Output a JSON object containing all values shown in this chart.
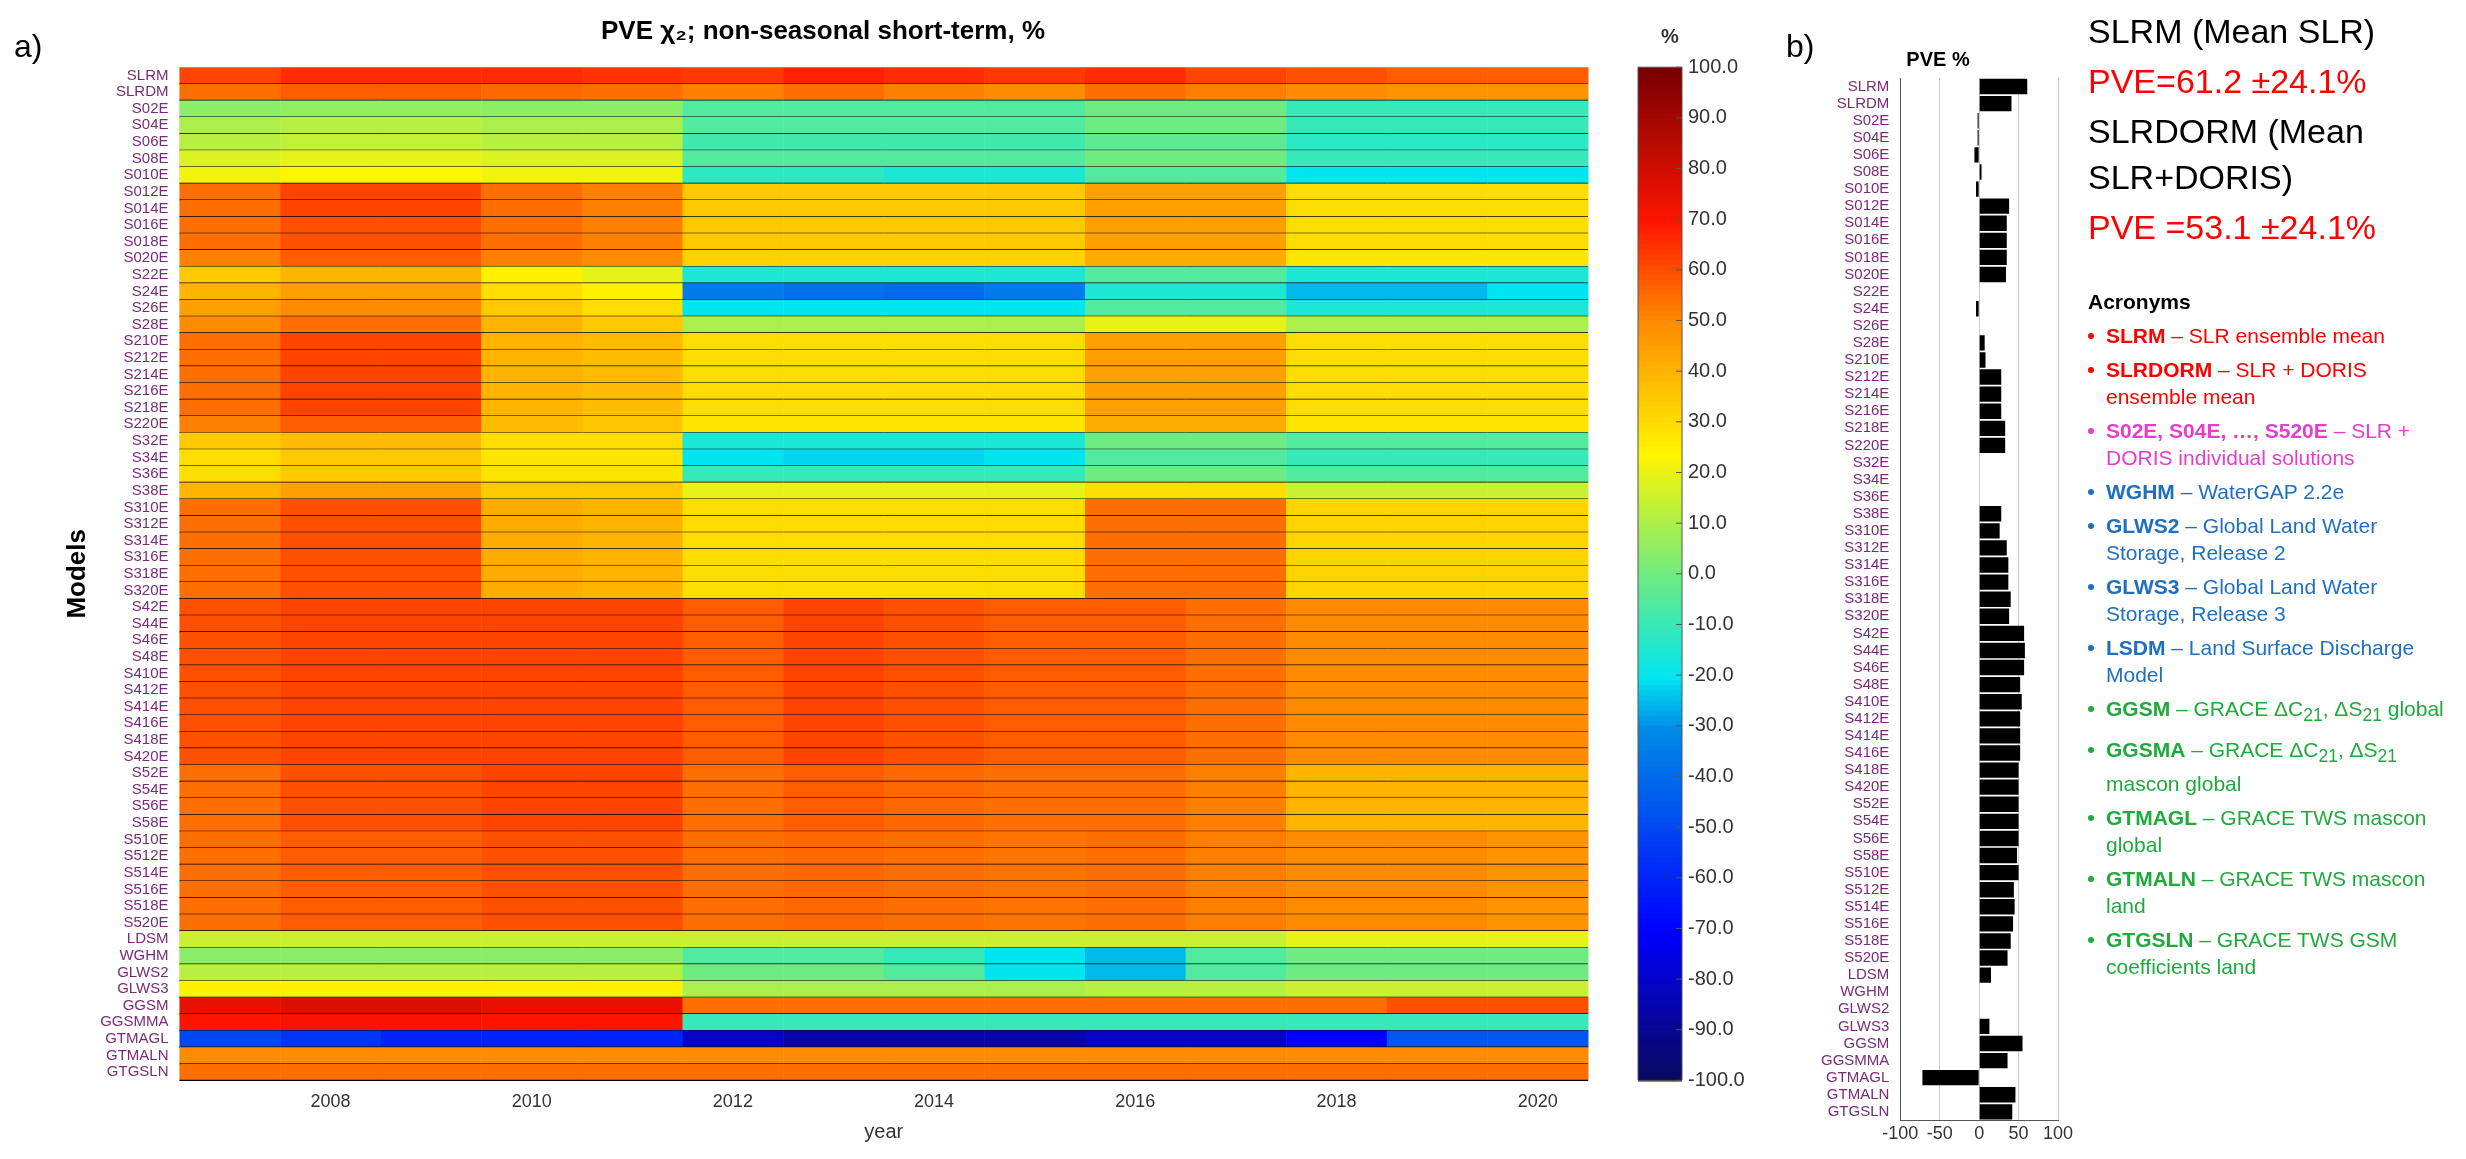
{
  "chart_data": [
    {
      "type": "heatmap",
      "title": "PVE χ₂; non-seasonal short-term, %",
      "xlabel": "year",
      "ylabel": "Models",
      "clabel": "%",
      "annotations": [
        "a)"
      ],
      "x": [
        2007,
        2008,
        2009,
        2010,
        2011,
        2012,
        2013,
        2014,
        2015,
        2016,
        2017,
        2018,
        2019,
        2020
      ],
      "xlim": [
        2006.5,
        2020.5
      ],
      "xticks": [
        2008,
        2010,
        2012,
        2014,
        2016,
        2018,
        2020
      ],
      "clim": [
        -100,
        100
      ],
      "cticks": [
        {
          "value": 100,
          "label": "100.0"
        },
        {
          "value": 90,
          "label": "90.0"
        },
        {
          "value": 80,
          "label": "80.0"
        },
        {
          "value": 70,
          "label": "70.0"
        },
        {
          "value": 60,
          "label": "60.0"
        },
        {
          "value": 50,
          "label": "50.0"
        },
        {
          "value": 40,
          "label": "40.0"
        },
        {
          "value": 30,
          "label": "30.0"
        },
        {
          "value": 20,
          "label": "20.0"
        },
        {
          "value": 10,
          "label": "10.0"
        },
        {
          "value": 0,
          "label": "0.0"
        },
        {
          "value": -10,
          "label": "-10.0"
        },
        {
          "value": -20,
          "label": "-20.0"
        },
        {
          "value": -30,
          "label": "-30.0"
        },
        {
          "value": -40,
          "label": "-40.0"
        },
        {
          "value": -50,
          "label": "-50.0"
        },
        {
          "value": -60,
          "label": "-60.0"
        },
        {
          "value": -70,
          "label": "-70.0"
        },
        {
          "value": -80,
          "label": "-80.0"
        },
        {
          "value": -90,
          "label": "-90.0"
        },
        {
          "value": -100,
          "label": "-100.0"
        }
      ],
      "y_categories": [
        "SLRM",
        "SLRDM",
        "S02E",
        "S04E",
        "S06E",
        "S08E",
        "S010E",
        "S012E",
        "S014E",
        "S016E",
        "S018E",
        "S020E",
        "S22E",
        "S24E",
        "S26E",
        "S28E",
        "S210E",
        "S212E",
        "S214E",
        "S216E",
        "S218E",
        "S220E",
        "S32E",
        "S34E",
        "S36E",
        "S38E",
        "S310E",
        "S312E",
        "S314E",
        "S316E",
        "S318E",
        "S320E",
        "S42E",
        "S44E",
        "S46E",
        "S48E",
        "S410E",
        "S412E",
        "S414E",
        "S416E",
        "S418E",
        "S420E",
        "S52E",
        "S54E",
        "S56E",
        "S58E",
        "S510E",
        "S512E",
        "S514E",
        "S516E",
        "S518E",
        "S520E",
        "LDSM",
        "WGHM",
        "GLWS2",
        "GLWS3",
        "GGSM",
        "GGSMMA",
        "GTMAGL",
        "GTMALN",
        "GTGSLN"
      ],
      "cells": [
        [
          62,
          66,
          66,
          66,
          65,
          64,
          68,
          66,
          64,
          66,
          62,
          60,
          58,
          58
        ],
        [
          55,
          58,
          58,
          56,
          55,
          52,
          55,
          52,
          50,
          55,
          52,
          50,
          48,
          48
        ],
        [
          5,
          6,
          6,
          5,
          5,
          -5,
          -5,
          -5,
          -5,
          0,
          0,
          -10,
          -10,
          -10
        ],
        [
          10,
          12,
          12,
          10,
          10,
          -5,
          -5,
          -5,
          -5,
          0,
          0,
          -10,
          -10,
          -10
        ],
        [
          12,
          14,
          14,
          12,
          12,
          -8,
          -8,
          -8,
          -8,
          -3,
          -3,
          -12,
          -12,
          -12
        ],
        [
          18,
          20,
          20,
          18,
          18,
          -5,
          -5,
          -5,
          -5,
          0,
          0,
          -10,
          -10,
          -10
        ],
        [
          22,
          24,
          24,
          22,
          22,
          -12,
          -12,
          -15,
          -15,
          -5,
          -5,
          -20,
          -20,
          -20
        ],
        [
          55,
          62,
          62,
          55,
          52,
          35,
          35,
          35,
          35,
          45,
          45,
          30,
          30,
          30
        ],
        [
          55,
          62,
          62,
          55,
          52,
          35,
          35,
          35,
          35,
          45,
          45,
          30,
          30,
          30
        ],
        [
          55,
          60,
          60,
          55,
          52,
          35,
          35,
          35,
          35,
          45,
          45,
          30,
          30,
          30
        ],
        [
          55,
          60,
          60,
          55,
          52,
          35,
          35,
          35,
          35,
          45,
          45,
          30,
          30,
          30
        ],
        [
          52,
          58,
          58,
          52,
          50,
          33,
          33,
          33,
          33,
          42,
          42,
          28,
          28,
          28
        ],
        [
          35,
          40,
          40,
          25,
          20,
          -15,
          -15,
          -15,
          -15,
          -5,
          -5,
          -15,
          -15,
          -15
        ],
        [
          40,
          45,
          45,
          30,
          25,
          -35,
          -38,
          -40,
          -35,
          -15,
          -15,
          -25,
          -25,
          -20
        ],
        [
          45,
          50,
          50,
          35,
          30,
          -20,
          -20,
          -20,
          -20,
          -5,
          -5,
          -15,
          -15,
          -15
        ],
        [
          50,
          55,
          55,
          40,
          35,
          10,
          10,
          10,
          10,
          20,
          20,
          10,
          10,
          10
        ],
        [
          55,
          62,
          62,
          40,
          38,
          30,
          30,
          30,
          30,
          45,
          45,
          30,
          30,
          30
        ],
        [
          55,
          62,
          62,
          40,
          38,
          30,
          30,
          30,
          30,
          45,
          45,
          30,
          30,
          30
        ],
        [
          55,
          62,
          62,
          40,
          38,
          30,
          30,
          30,
          30,
          45,
          45,
          30,
          30,
          30
        ],
        [
          55,
          62,
          62,
          40,
          38,
          30,
          30,
          30,
          30,
          45,
          45,
          30,
          30,
          30
        ],
        [
          55,
          62,
          62,
          40,
          38,
          30,
          30,
          30,
          30,
          45,
          45,
          30,
          30,
          30
        ],
        [
          52,
          58,
          58,
          38,
          36,
          28,
          28,
          28,
          28,
          42,
          42,
          28,
          28,
          28
        ],
        [
          35,
          38,
          38,
          30,
          30,
          -15,
          -15,
          -15,
          -15,
          0,
          0,
          -5,
          -5,
          -5
        ],
        [
          30,
          35,
          35,
          28,
          28,
          -20,
          -22,
          -22,
          -20,
          -5,
          -5,
          -10,
          -10,
          -10
        ],
        [
          30,
          35,
          35,
          28,
          28,
          -10,
          -10,
          -10,
          -10,
          0,
          0,
          -5,
          -5,
          -5
        ],
        [
          40,
          45,
          45,
          35,
          35,
          20,
          20,
          20,
          20,
          30,
          30,
          15,
          15,
          15
        ],
        [
          55,
          60,
          60,
          42,
          40,
          30,
          30,
          30,
          30,
          55,
          55,
          32,
          32,
          32
        ],
        [
          55,
          60,
          60,
          42,
          40,
          30,
          30,
          30,
          30,
          55,
          55,
          32,
          32,
          32
        ],
        [
          55,
          60,
          60,
          42,
          40,
          30,
          30,
          30,
          30,
          55,
          55,
          32,
          32,
          32
        ],
        [
          55,
          60,
          60,
          42,
          40,
          30,
          30,
          30,
          30,
          55,
          55,
          32,
          32,
          32
        ],
        [
          55,
          60,
          60,
          42,
          40,
          30,
          30,
          30,
          30,
          55,
          55,
          32,
          32,
          32
        ],
        [
          55,
          60,
          60,
          42,
          40,
          30,
          30,
          30,
          30,
          55,
          55,
          32,
          32,
          32
        ],
        [
          60,
          62,
          62,
          62,
          62,
          58,
          62,
          60,
          58,
          58,
          55,
          50,
          50,
          50
        ],
        [
          60,
          62,
          62,
          62,
          62,
          58,
          62,
          60,
          58,
          58,
          55,
          50,
          50,
          50
        ],
        [
          60,
          62,
          62,
          62,
          62,
          58,
          62,
          60,
          58,
          58,
          55,
          50,
          50,
          50
        ],
        [
          60,
          62,
          62,
          62,
          62,
          58,
          62,
          60,
          58,
          58,
          55,
          50,
          50,
          50
        ],
        [
          60,
          62,
          62,
          62,
          62,
          58,
          62,
          60,
          58,
          58,
          55,
          50,
          50,
          50
        ],
        [
          60,
          62,
          62,
          62,
          62,
          58,
          62,
          60,
          58,
          58,
          55,
          50,
          50,
          50
        ],
        [
          60,
          62,
          62,
          62,
          62,
          58,
          62,
          60,
          58,
          58,
          55,
          50,
          50,
          50
        ],
        [
          60,
          62,
          62,
          62,
          62,
          58,
          62,
          60,
          58,
          58,
          55,
          50,
          50,
          50
        ],
        [
          60,
          62,
          62,
          62,
          62,
          58,
          62,
          60,
          58,
          58,
          55,
          50,
          50,
          50
        ],
        [
          60,
          62,
          62,
          62,
          62,
          58,
          62,
          60,
          58,
          58,
          55,
          50,
          50,
          50
        ],
        [
          55,
          60,
          60,
          62,
          62,
          55,
          58,
          56,
          55,
          55,
          52,
          40,
          40,
          40
        ],
        [
          55,
          60,
          60,
          62,
          62,
          55,
          58,
          56,
          55,
          55,
          52,
          40,
          40,
          40
        ],
        [
          55,
          60,
          60,
          62,
          62,
          55,
          58,
          56,
          55,
          55,
          52,
          40,
          40,
          40
        ],
        [
          55,
          60,
          60,
          62,
          62,
          55,
          58,
          56,
          55,
          55,
          52,
          40,
          40,
          40
        ],
        [
          55,
          58,
          58,
          60,
          60,
          55,
          56,
          55,
          54,
          55,
          52,
          50,
          50,
          48
        ],
        [
          55,
          58,
          58,
          60,
          60,
          55,
          56,
          55,
          54,
          55,
          52,
          50,
          50,
          48
        ],
        [
          55,
          58,
          58,
          60,
          60,
          55,
          56,
          55,
          54,
          55,
          52,
          50,
          50,
          48
        ],
        [
          55,
          58,
          58,
          60,
          60,
          55,
          56,
          55,
          54,
          55,
          52,
          50,
          50,
          48
        ],
        [
          55,
          58,
          58,
          60,
          60,
          55,
          56,
          55,
          54,
          55,
          52,
          50,
          50,
          48
        ],
        [
          55,
          58,
          58,
          60,
          60,
          55,
          56,
          55,
          54,
          55,
          52,
          50,
          50,
          48
        ],
        [
          15,
          15,
          15,
          15,
          15,
          15,
          15,
          15,
          15,
          15,
          15,
          20,
          20,
          20
        ],
        [
          5,
          5,
          5,
          5,
          5,
          -5,
          -5,
          -10,
          -20,
          -25,
          -5,
          0,
          0,
          0
        ],
        [
          12,
          12,
          12,
          12,
          12,
          0,
          0,
          -5,
          -20,
          -25,
          -5,
          0,
          0,
          0
        ],
        [
          25,
          25,
          25,
          25,
          25,
          10,
          10,
          10,
          10,
          12,
          12,
          15,
          15,
          15
        ],
        [
          75,
          78,
          78,
          75,
          75,
          55,
          55,
          55,
          55,
          55,
          55,
          55,
          60,
          60
        ],
        [
          70,
          72,
          72,
          70,
          70,
          -10,
          -10,
          -10,
          -10,
          -10,
          -10,
          -10,
          -10,
          -10
        ],
        [
          -50,
          -55,
          -60,
          -60,
          -60,
          -80,
          -85,
          -85,
          -85,
          -80,
          -80,
          -70,
          -45,
          -45
        ],
        [
          50,
          50,
          50,
          50,
          50,
          50,
          50,
          50,
          50,
          50,
          50,
          50,
          50,
          50
        ],
        [
          55,
          55,
          55,
          55,
          55,
          55,
          55,
          55,
          55,
          55,
          55,
          55,
          55,
          55
        ]
      ]
    },
    {
      "type": "bar",
      "orientation": "horizontal",
      "title": "PVE %",
      "annotations": [
        "b)"
      ],
      "color": "#000000",
      "grid": "x",
      "categories": [
        "SLRM",
        "SLRDM",
        "S02E",
        "S04E",
        "S06E",
        "S08E",
        "S010E",
        "S012E",
        "S014E",
        "S016E",
        "S018E",
        "S020E",
        "S22E",
        "S24E",
        "S26E",
        "S28E",
        "S210E",
        "S212E",
        "S214E",
        "S216E",
        "S218E",
        "S220E",
        "S32E",
        "S34E",
        "S36E",
        "S38E",
        "S310E",
        "S312E",
        "S314E",
        "S316E",
        "S318E",
        "S320E",
        "S42E",
        "S44E",
        "S46E",
        "S48E",
        "S410E",
        "S412E",
        "S414E",
        "S416E",
        "S418E",
        "S420E",
        "S52E",
        "S54E",
        "S56E",
        "S58E",
        "S510E",
        "S512E",
        "S514E",
        "S516E",
        "S518E",
        "S520E",
        "LDSM",
        "WGHM",
        "GLWS2",
        "GLWS3",
        "GGSM",
        "GGSMMA",
        "GTMAGL",
        "GTMALN",
        "GTGSLN"
      ],
      "values": [
        61,
        41,
        -2,
        -2,
        -6,
        3,
        -4,
        38,
        35,
        35,
        35,
        34,
        0,
        -4,
        null,
        7,
        8,
        28,
        28,
        28,
        33,
        33,
        null,
        0,
        0,
        28,
        26,
        35,
        37,
        37,
        40,
        38,
        57,
        58,
        57,
        52,
        54,
        52,
        52,
        52,
        50,
        50,
        50,
        50,
        50,
        48,
        50,
        44,
        45,
        43,
        40,
        36,
        15,
        0,
        0,
        13,
        55,
        36,
        -72,
        46,
        42
      ],
      "xlim": [
        -100,
        100
      ],
      "xticks": [
        -100,
        -50,
        0,
        50,
        100
      ]
    },
    {
      "type": "other",
      "annotations": [
        "SLRM (Mean SLR)",
        "PVE=61.2 ±24.1%",
        "SLRDORM (Mean SLR+DORIS)",
        "PVE =53.1 ±24.1%",
        "Acronyms",
        "SLRM – SLR ensemble mean",
        "SLRDORM – SLR + DORIS ensemble mean",
        "S02E, S04E, …, S520E – SLR + DORIS individual solutions",
        "WGHM – WaterGAP 2.2e",
        "GLWS2 – Global Land Water Storage, Release 2",
        "GLWS3 – Global Land Water Storage, Release 3",
        "LSDM – Land Surface Discharge Model",
        "GGSM – GRACE ΔC$_{21}$, ΔS$_{21}$ global",
        "GGSMA – GRACE ΔC$_{21}$, ΔS$_{21}$ mascon global",
        "GTMAGL – GRACE TWS mascon global",
        "GTMALN – GRACE TWS mascon land",
        "GTGSLN – GRACE TWS GSM coefficients land"
      ],
      "colors": [
        "#000000",
        "#ff0000",
        "#000000",
        "#ff0000",
        "#000000",
        "#ff0000",
        "#ff0000",
        "#e83ccf",
        "#1f6fc0",
        "#1f6fc0",
        "#1f6fc0",
        "#1f6fc0",
        "#1faa3c",
        "#1faa3c",
        "#1faa3c",
        "#1faa3c",
        "#1faa3c"
      ]
    }
  ]
}
